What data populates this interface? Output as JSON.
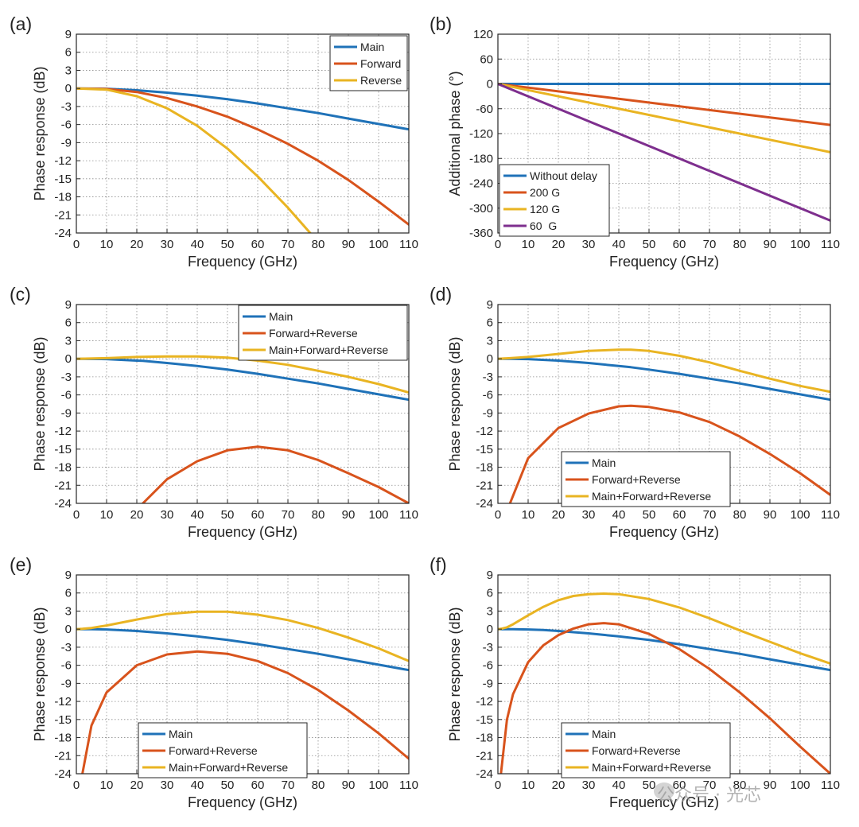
{
  "colors": {
    "blue": "#1f72b8",
    "orange": "#d8531c",
    "yellow": "#e9b422",
    "purple": "#7e2f8e",
    "grid": "#8c8c8c",
    "axis": "#262626"
  },
  "watermark": "公众号 · 光芯",
  "chart_data": [
    {
      "panel": "(a)",
      "type": "line",
      "xlabel": "Frequency (GHz)",
      "ylabel": "Phase response (dB)",
      "xlim": [
        0,
        110
      ],
      "ylim": [
        -24,
        9
      ],
      "xticks": [
        0,
        10,
        20,
        30,
        40,
        50,
        60,
        70,
        80,
        90,
        100,
        110
      ],
      "yticks": [
        9,
        6,
        3,
        0,
        -3,
        -6,
        -9,
        -12,
        -15,
        -18,
        -21,
        -24
      ],
      "grid": true,
      "legend_position": "top-right",
      "x": [
        0,
        10,
        20,
        30,
        40,
        50,
        60,
        70,
        80,
        90,
        100,
        110
      ],
      "series": [
        {
          "name": "Main",
          "color_key": "blue",
          "values": [
            0,
            -0.05,
            -0.3,
            -0.7,
            -1.2,
            -1.8,
            -2.5,
            -3.3,
            -4.1,
            -5.0,
            -5.9,
            -6.8
          ]
        },
        {
          "name": "Forward",
          "color_key": "orange",
          "values": [
            0,
            -0.1,
            -0.6,
            -1.6,
            -3.0,
            -4.7,
            -6.8,
            -9.2,
            -12.0,
            -15.2,
            -18.8,
            -22.6
          ]
        },
        {
          "name": "Reverse",
          "color_key": "yellow",
          "values": [
            0,
            -0.2,
            -1.3,
            -3.3,
            -6.2,
            -10.0,
            -14.6,
            -19.8,
            -25.5,
            null,
            null,
            null
          ]
        }
      ]
    },
    {
      "panel": "(b)",
      "type": "line",
      "xlabel": "Frequency (GHz)",
      "ylabel": "Additional phase (°)",
      "xlim": [
        0,
        110
      ],
      "ylim": [
        -360,
        120
      ],
      "xticks": [
        0,
        10,
        20,
        30,
        40,
        50,
        60,
        70,
        80,
        90,
        100,
        110
      ],
      "yticks": [
        120,
        60,
        0,
        -60,
        -120,
        -180,
        -240,
        -300,
        -360
      ],
      "grid": true,
      "legend_position": "bottom-left",
      "x": [
        0,
        110
      ],
      "series": [
        {
          "name": "Without delay",
          "color_key": "blue",
          "values": [
            0,
            0
          ]
        },
        {
          "name": "200 G",
          "color_key": "orange",
          "values": [
            0,
            -99
          ]
        },
        {
          "name": "120 G",
          "color_key": "yellow",
          "values": [
            0,
            -165
          ]
        },
        {
          "name": "60  G",
          "color_key": "purple",
          "values": [
            0,
            -330
          ]
        }
      ]
    },
    {
      "panel": "(c)",
      "type": "line",
      "xlabel": "Frequency (GHz)",
      "ylabel": "Phase response (dB)",
      "xlim": [
        0,
        110
      ],
      "ylim": [
        -24,
        9
      ],
      "xticks": [
        0,
        10,
        20,
        30,
        40,
        50,
        60,
        70,
        80,
        90,
        100,
        110
      ],
      "yticks": [
        9,
        6,
        3,
        0,
        -3,
        -6,
        -9,
        -12,
        -15,
        -18,
        -21,
        -24
      ],
      "grid": true,
      "legend_position": "top-right",
      "x": [
        0,
        10,
        20,
        22,
        30,
        40,
        50,
        60,
        70,
        80,
        90,
        100,
        110
      ],
      "series": [
        {
          "name": "Main",
          "color_key": "blue",
          "values": [
            0,
            -0.05,
            -0.3,
            -0.35,
            -0.7,
            -1.2,
            -1.8,
            -2.5,
            -3.3,
            -4.1,
            -5.0,
            -5.9,
            -6.8
          ]
        },
        {
          "name": "Forward+Reverse",
          "color_key": "orange",
          "values": [
            null,
            null,
            null,
            -24.0,
            -20.0,
            -17.0,
            -15.2,
            -14.6,
            -15.2,
            -16.8,
            -19.0,
            -21.3,
            -24.0
          ]
        },
        {
          "name": "Main+Forward+Reverse",
          "color_key": "yellow",
          "values": [
            0,
            0.1,
            0.3,
            0.32,
            0.4,
            0.4,
            0.2,
            -0.3,
            -1.0,
            -2.0,
            -3.0,
            -4.2,
            -5.6
          ]
        }
      ]
    },
    {
      "panel": "(d)",
      "type": "line",
      "xlabel": "Frequency (GHz)",
      "ylabel": "Phase response (dB)",
      "xlim": [
        0,
        110
      ],
      "ylim": [
        -24,
        9
      ],
      "xticks": [
        0,
        10,
        20,
        30,
        40,
        50,
        60,
        70,
        80,
        90,
        100,
        110
      ],
      "yticks": [
        9,
        6,
        3,
        0,
        -3,
        -6,
        -9,
        -12,
        -15,
        -18,
        -21,
        -24
      ],
      "grid": true,
      "legend_position": "bottom-center",
      "x": [
        0,
        4,
        10,
        20,
        30,
        40,
        44,
        50,
        60,
        70,
        80,
        90,
        100,
        110
      ],
      "series": [
        {
          "name": "Main",
          "color_key": "blue",
          "values": [
            0,
            0,
            -0.05,
            -0.3,
            -0.7,
            -1.2,
            -1.4,
            -1.8,
            -2.5,
            -3.3,
            -4.1,
            -5.0,
            -5.9,
            -6.8
          ]
        },
        {
          "name": "Forward+Reverse",
          "color_key": "orange",
          "values": [
            null,
            -24.0,
            -16.5,
            -11.5,
            -9.1,
            -7.9,
            -7.8,
            -8.0,
            -8.9,
            -10.5,
            -12.9,
            -15.8,
            -19.0,
            -22.6
          ]
        },
        {
          "name": "Main+Forward+Reverse",
          "color_key": "yellow",
          "values": [
            0,
            0.1,
            0.3,
            0.8,
            1.3,
            1.5,
            1.5,
            1.3,
            0.5,
            -0.6,
            -2.0,
            -3.3,
            -4.5,
            -5.5
          ]
        }
      ]
    },
    {
      "panel": "(e)",
      "type": "line",
      "xlabel": "Frequency (GHz)",
      "ylabel": "Phase response (dB)",
      "xlim": [
        0,
        110
      ],
      "ylim": [
        -24,
        9
      ],
      "xticks": [
        0,
        10,
        20,
        30,
        40,
        50,
        60,
        70,
        80,
        90,
        100,
        110
      ],
      "yticks": [
        9,
        6,
        3,
        0,
        -3,
        -6,
        -9,
        -12,
        -15,
        -18,
        -21,
        -24
      ],
      "grid": true,
      "legend_position": "bottom-center",
      "x": [
        0,
        2,
        5,
        10,
        20,
        30,
        40,
        50,
        60,
        70,
        80,
        90,
        100,
        110
      ],
      "series": [
        {
          "name": "Main",
          "color_key": "blue",
          "values": [
            0,
            0,
            -0.02,
            -0.05,
            -0.3,
            -0.7,
            -1.2,
            -1.8,
            -2.5,
            -3.3,
            -4.1,
            -5.0,
            -5.9,
            -6.8
          ]
        },
        {
          "name": "Forward+Reverse",
          "color_key": "orange",
          "values": [
            null,
            -24.0,
            -16.0,
            -10.5,
            -6.0,
            -4.2,
            -3.7,
            -4.1,
            -5.3,
            -7.3,
            -10.1,
            -13.5,
            -17.3,
            -21.5
          ]
        },
        {
          "name": "Main+Forward+Reverse",
          "color_key": "yellow",
          "values": [
            0,
            0.05,
            0.2,
            0.6,
            1.6,
            2.5,
            2.9,
            2.9,
            2.4,
            1.5,
            0.2,
            -1.4,
            -3.2,
            -5.3
          ]
        }
      ]
    },
    {
      "panel": "(f)",
      "type": "line",
      "xlabel": "Frequency (GHz)",
      "ylabel": "Phase response (dB)",
      "xlim": [
        0,
        110
      ],
      "ylim": [
        -24,
        9
      ],
      "xticks": [
        0,
        10,
        20,
        30,
        40,
        50,
        60,
        70,
        80,
        90,
        100,
        110
      ],
      "yticks": [
        9,
        6,
        3,
        0,
        -3,
        -6,
        -9,
        -12,
        -15,
        -18,
        -21,
        -24
      ],
      "grid": true,
      "legend_position": "bottom-center",
      "x": [
        0,
        1,
        3,
        5,
        10,
        15,
        20,
        25,
        30,
        35,
        40,
        50,
        60,
        70,
        80,
        90,
        100,
        110
      ],
      "series": [
        {
          "name": "Main",
          "color_key": "blue",
          "values": [
            0,
            0,
            0,
            -0.02,
            -0.05,
            -0.15,
            -0.3,
            -0.5,
            -0.7,
            -0.95,
            -1.2,
            -1.8,
            -2.5,
            -3.3,
            -4.1,
            -5.0,
            -5.9,
            -6.8
          ]
        },
        {
          "name": "Forward+Reverse",
          "color_key": "orange",
          "values": [
            null,
            -24.0,
            -15.0,
            -10.8,
            -5.5,
            -2.7,
            -1.0,
            0.1,
            0.8,
            1.0,
            0.8,
            -0.8,
            -3.3,
            -6.6,
            -10.5,
            -14.8,
            -19.5,
            -24.0
          ]
        },
        {
          "name": "Main+Forward+Reverse",
          "color_key": "yellow",
          "values": [
            0,
            0.05,
            0.3,
            0.8,
            2.3,
            3.7,
            4.8,
            5.5,
            5.8,
            5.9,
            5.8,
            5.0,
            3.6,
            1.8,
            -0.2,
            -2.1,
            -4.0,
            -5.7
          ]
        }
      ]
    }
  ]
}
